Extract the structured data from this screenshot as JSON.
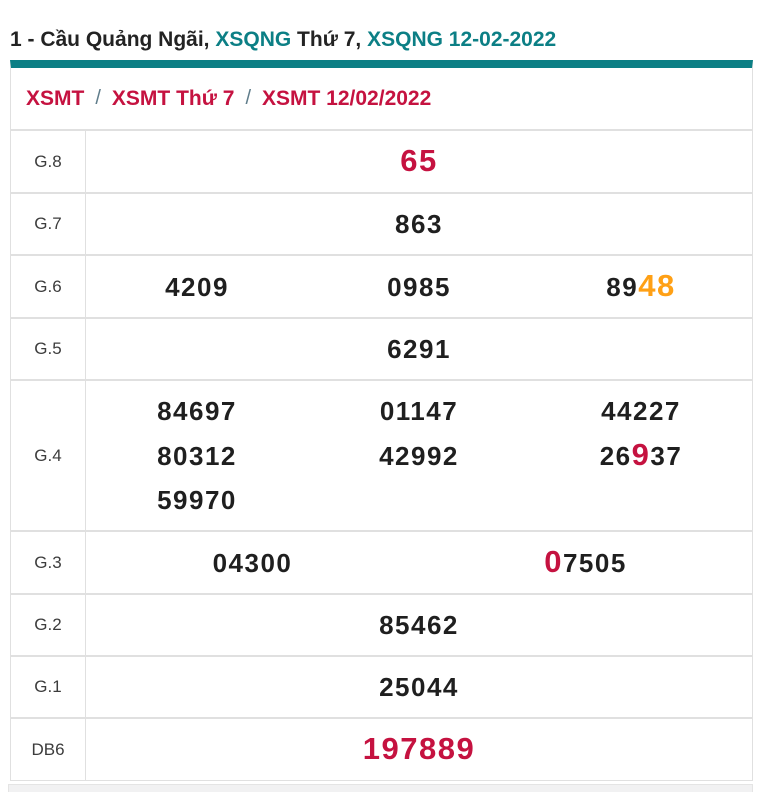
{
  "title": {
    "part1": "1 - Cầu Quảng Ngãi, ",
    "link1": "XSQNG",
    "part2": " Thứ 7, ",
    "link2": "XSQNG 12-02-2022"
  },
  "breadcrumb": {
    "separator": "/",
    "items": [
      "XSMT",
      "XSMT Thứ 7",
      "XSMT 12/02/2022"
    ]
  },
  "colors": {
    "teal": "#0c7f85",
    "crimson": "#c51240",
    "orange": "#ffa015",
    "number": "#1f1f1f",
    "dark": "#232323",
    "label": "#3c3c3c",
    "border": "#e0e0e0",
    "slash": "#607d8b"
  },
  "table": {
    "rows": [
      {
        "label": "G.8",
        "cols": 1,
        "cells": [
          [
            {
              "t": "65",
              "hl": "crimson"
            }
          ]
        ]
      },
      {
        "label": "G.7",
        "cols": 1,
        "cells": [
          [
            {
              "t": "863"
            }
          ]
        ]
      },
      {
        "label": "G.6",
        "cols": 3,
        "cells": [
          [
            {
              "t": "4209"
            }
          ],
          [
            {
              "t": "0985"
            }
          ],
          [
            {
              "t": "89"
            },
            {
              "t": "48",
              "hl": "orange"
            }
          ]
        ]
      },
      {
        "label": "G.5",
        "cols": 1,
        "cells": [
          [
            {
              "t": "6291"
            }
          ]
        ]
      },
      {
        "label": "G.4",
        "cols": 3,
        "cells": [
          [
            {
              "t": "84697"
            }
          ],
          [
            {
              "t": "01147"
            }
          ],
          [
            {
              "t": "44227"
            }
          ],
          [
            {
              "t": "80312"
            }
          ],
          [
            {
              "t": "42992"
            }
          ],
          [
            {
              "t": "26"
            },
            {
              "t": "9",
              "hl": "crimson"
            },
            {
              "t": "37"
            }
          ],
          [
            {
              "t": "59970"
            }
          ]
        ]
      },
      {
        "label": "G.3",
        "cols": 2,
        "cells": [
          [
            {
              "t": "04300"
            }
          ],
          [
            {
              "t": "0",
              "hl": "crimson"
            },
            {
              "t": "7505"
            }
          ]
        ]
      },
      {
        "label": "G.2",
        "cols": 1,
        "cells": [
          [
            {
              "t": "85462"
            }
          ]
        ]
      },
      {
        "label": "G.1",
        "cols": 1,
        "cells": [
          [
            {
              "t": "25044"
            }
          ]
        ]
      },
      {
        "label": "DB6",
        "cols": 1,
        "cells": [
          [
            {
              "t": "197889",
              "hl": "crimson"
            }
          ]
        ]
      }
    ]
  }
}
